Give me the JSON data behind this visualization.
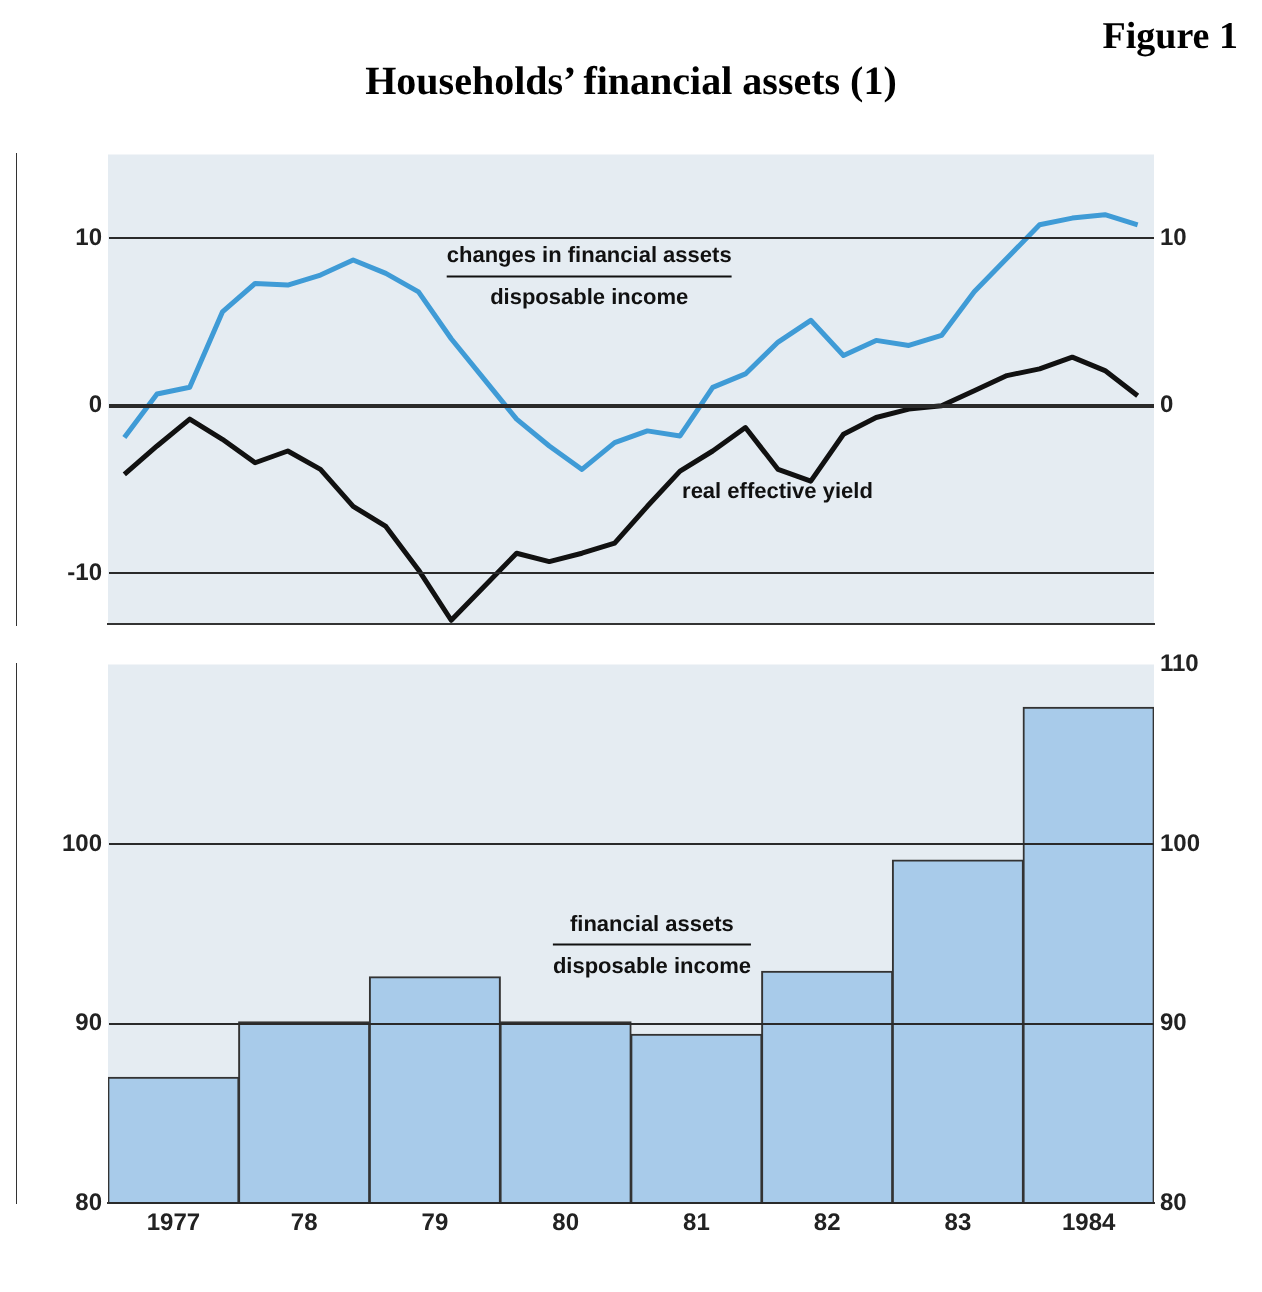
{
  "chart_data": [
    {
      "type": "line",
      "title": "Households’ financial assets (1)",
      "subtitle": "Figure 1",
      "categories": [
        null,
        null,
        null,
        null,
        null,
        null,
        null,
        null,
        null,
        null,
        null,
        null,
        null,
        null,
        null,
        null,
        null,
        null,
        null,
        null,
        null,
        null,
        null,
        null,
        null,
        null,
        null,
        null,
        null,
        null,
        null,
        null
      ],
      "series": [
        {
          "name": "changes in financial assets\ndisposable income",
          "color": "#3f9bd6",
          "values": [
            -1.9,
            0.7,
            1.1,
            5.6,
            7.3,
            7.2,
            7.8,
            8.7,
            7.9,
            6.8,
            4.0,
            1.6,
            -0.8,
            -2.4,
            -3.8,
            -2.2,
            -1.5,
            -1.8,
            1.1,
            1.9,
            3.8,
            5.1,
            3.0,
            3.9,
            3.6,
            4.2,
            6.8,
            8.8,
            10.8,
            11.2,
            11.4,
            10.8
          ]
        },
        {
          "name": "real effective yield",
          "color": "#111111",
          "values": [
            -4.1,
            -2.4,
            -0.8,
            -2.0,
            -3.4,
            -2.7,
            -3.8,
            -6.0,
            -7.2,
            -9.8,
            -12.8,
            -10.8,
            -8.8,
            -9.3,
            -8.8,
            -8.2,
            -6.0,
            -3.9,
            -2.7,
            -1.3,
            -3.8,
            -4.5,
            -1.7,
            -0.7,
            -0.2,
            0.0,
            0.9,
            1.8,
            2.2,
            2.9,
            2.1,
            0.6
          ]
        }
      ],
      "ylim": [
        -13,
        15
      ],
      "yticks": [
        -10,
        0,
        10
      ],
      "y2lim": [
        -13,
        15
      ],
      "y2ticks": [
        0,
        10
      ],
      "tick_labels": "y",
      "grid": "y",
      "legend": false,
      "marker": "none",
      "line_style": "solid"
    },
    {
      "type": "bar",
      "categories": [
        "1977",
        "78",
        "79",
        "80",
        "81",
        "82",
        "83",
        "1984"
      ],
      "series": [
        {
          "name": "financial assets\ndisposable income",
          "color": "#a8cbea",
          "values": [
            87.0,
            90.1,
            92.6,
            90.1,
            89.4,
            92.9,
            99.1,
            107.6
          ]
        }
      ],
      "ylim": [
        80,
        110
      ],
      "yticks": [
        80,
        90,
        100
      ],
      "y2lim": [
        80,
        110
      ],
      "y2ticks": [
        80,
        90,
        100,
        110
      ],
      "grid": "y",
      "legend": false
    }
  ]
}
